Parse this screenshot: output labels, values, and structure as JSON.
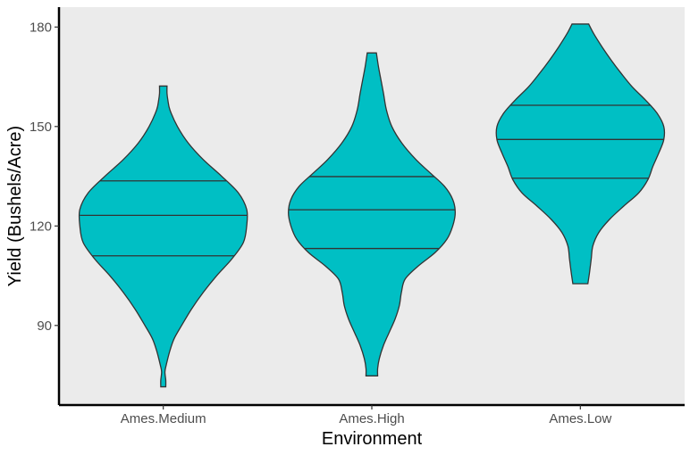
{
  "chart_data": {
    "type": "violin",
    "xlabel": "Environment",
    "ylabel": "Yield (Bushels/Acre)",
    "categories": [
      "Ames.Medium",
      "Ames.High",
      "Ames.Low"
    ],
    "y_ticks": [
      90,
      120,
      150,
      180
    ],
    "ylim": [
      66,
      186
    ],
    "grid": false,
    "fill_color": "#00BFC4",
    "outline_color": "#333333",
    "panel_background": "#EBEBEB",
    "violins": [
      {
        "category": "Ames.Medium",
        "min": 71.5,
        "max": 162.2,
        "quantiles": {
          "q25": 111,
          "q50": 123.2,
          "q75": 133.6
        },
        "density": [
          [
            71.5,
            0.03
          ],
          [
            73.5,
            0.03
          ],
          [
            76,
            0.02
          ],
          [
            78,
            0.035
          ],
          [
            82,
            0.075
          ],
          [
            86,
            0.13
          ],
          [
            90,
            0.22
          ],
          [
            95,
            0.34
          ],
          [
            100,
            0.48
          ],
          [
            105,
            0.64
          ],
          [
            110,
            0.82
          ],
          [
            115,
            0.96
          ],
          [
            120,
            1.0
          ],
          [
            125,
            1.0
          ],
          [
            130,
            0.9
          ],
          [
            135,
            0.7
          ],
          [
            140,
            0.48
          ],
          [
            145,
            0.3
          ],
          [
            150,
            0.17
          ],
          [
            155,
            0.08
          ],
          [
            158,
            0.055
          ],
          [
            160,
            0.045
          ],
          [
            162.2,
            0.045
          ]
        ]
      },
      {
        "category": "Ames.High",
        "min": 74.8,
        "max": 172.2,
        "quantiles": {
          "q25": 113.2,
          "q50": 124.9,
          "q75": 134.9
        },
        "density": [
          [
            74.8,
            0.07
          ],
          [
            77,
            0.07
          ],
          [
            80,
            0.09
          ],
          [
            84,
            0.14
          ],
          [
            88,
            0.21
          ],
          [
            92,
            0.28
          ],
          [
            96,
            0.33
          ],
          [
            100,
            0.355
          ],
          [
            104,
            0.4
          ],
          [
            108,
            0.56
          ],
          [
            112,
            0.76
          ],
          [
            116,
            0.9
          ],
          [
            120,
            0.97
          ],
          [
            124,
            1.0
          ],
          [
            128,
            0.97
          ],
          [
            132,
            0.87
          ],
          [
            136,
            0.7
          ],
          [
            140,
            0.53
          ],
          [
            145,
            0.36
          ],
          [
            150,
            0.24
          ],
          [
            155,
            0.175
          ],
          [
            160,
            0.14
          ],
          [
            164,
            0.11
          ],
          [
            168,
            0.08
          ],
          [
            172.2,
            0.055
          ]
        ]
      },
      {
        "category": "Ames.Low",
        "min": 102.6,
        "max": 180.9,
        "quantiles": {
          "q25": 134.4,
          "q50": 146.1,
          "q75": 156.4
        },
        "density": [
          [
            102.6,
            0.09
          ],
          [
            106,
            0.11
          ],
          [
            110,
            0.13
          ],
          [
            114,
            0.15
          ],
          [
            118,
            0.22
          ],
          [
            122,
            0.35
          ],
          [
            126,
            0.52
          ],
          [
            130,
            0.7
          ],
          [
            134,
            0.81
          ],
          [
            138,
            0.87
          ],
          [
            142,
            0.94
          ],
          [
            146,
            1.0
          ],
          [
            150,
            1.0
          ],
          [
            154,
            0.92
          ],
          [
            158,
            0.78
          ],
          [
            162,
            0.62
          ],
          [
            166,
            0.49
          ],
          [
            170,
            0.37
          ],
          [
            174,
            0.26
          ],
          [
            178,
            0.16
          ],
          [
            180.9,
            0.1
          ]
        ]
      }
    ]
  }
}
